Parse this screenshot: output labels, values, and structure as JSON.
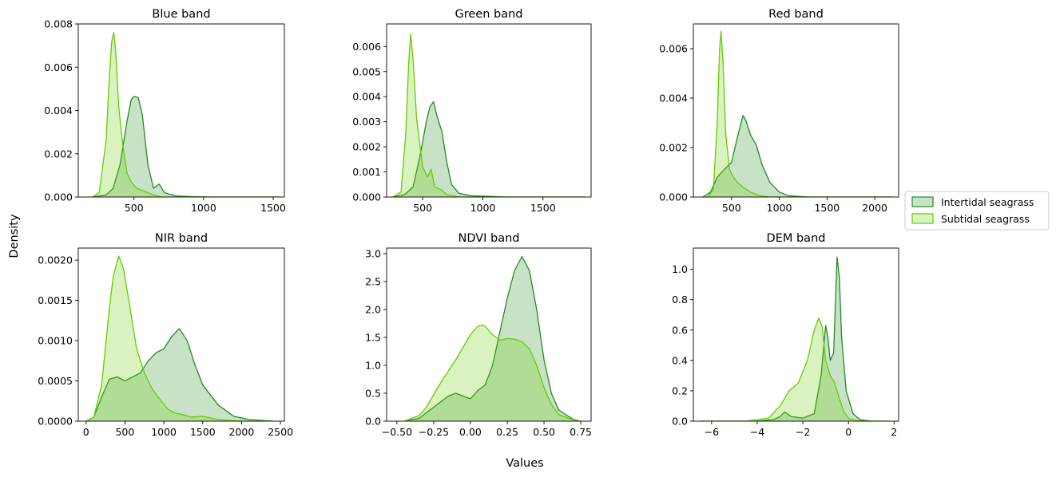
{
  "figure": {
    "xlabel": "Values",
    "ylabel": "Density"
  },
  "colors": {
    "intertidal": "#228b22",
    "subtidal": "#66cc00"
  },
  "legend": {
    "placement": "right-center",
    "entries": [
      {
        "label": "Intertidal seagrass",
        "color": "#228b22"
      },
      {
        "label": "Subtidal seagrass",
        "color": "#66cc00"
      }
    ]
  },
  "chart_data": [
    {
      "type": "area",
      "title": "Blue band",
      "xlim": [
        100,
        1580
      ],
      "ylim": [
        0,
        0.008
      ],
      "xticks": [
        500,
        1000,
        1500
      ],
      "xtick_labels": [
        "500",
        "1000",
        "1500"
      ],
      "yticks": [
        0,
        0.002,
        0.004,
        0.006,
        0.008
      ],
      "ytick_labels": [
        "0.000",
        "0.002",
        "0.004",
        "0.006",
        "0.008"
      ],
      "series": [
        {
          "name": "Intertidal seagrass",
          "x": [
            200,
            300,
            350,
            400,
            450,
            480,
            500,
            530,
            560,
            600,
            640,
            680,
            720,
            800,
            900,
            1100,
            1550
          ],
          "y": [
            0,
            0.0001,
            0.0004,
            0.0015,
            0.0035,
            0.0045,
            0.00465,
            0.0046,
            0.0038,
            0.0015,
            0.0004,
            0.0006,
            0.0002,
            5e-05,
            2e-05,
            0,
            0
          ]
        },
        {
          "name": "Subtidal seagrass",
          "x": [
            200,
            250,
            300,
            320,
            340,
            355,
            370,
            390,
            420,
            450,
            480,
            520,
            560,
            600,
            640,
            700,
            1000,
            1550
          ],
          "y": [
            0,
            0.0002,
            0.0026,
            0.0052,
            0.0072,
            0.0076,
            0.0066,
            0.0042,
            0.0024,
            0.0011,
            0.0007,
            0.0004,
            0.0003,
            0.0002,
            0.0001,
            0,
            0,
            0
          ]
        }
      ]
    },
    {
      "type": "area",
      "title": "Green band",
      "xlim": [
        200,
        1900
      ],
      "ylim": [
        0,
        0.0069
      ],
      "xticks": [
        500,
        1000,
        1500
      ],
      "xtick_labels": [
        "500",
        "1000",
        "1500"
      ],
      "yticks": [
        0,
        0.001,
        0.002,
        0.003,
        0.004,
        0.005,
        0.006
      ],
      "ytick_labels": [
        "0.000",
        "0.001",
        "0.002",
        "0.003",
        "0.004",
        "0.005",
        "0.006"
      ],
      "series": [
        {
          "name": "Intertidal seagrass",
          "x": [
            250,
            350,
            420,
            480,
            530,
            560,
            590,
            620,
            660,
            700,
            740,
            800,
            900,
            1200,
            1850
          ],
          "y": [
            0,
            0.0001,
            0.0004,
            0.0017,
            0.003,
            0.0036,
            0.0038,
            0.0032,
            0.0026,
            0.0014,
            0.0005,
            0.00015,
            5e-05,
            0,
            0
          ]
        },
        {
          "name": "Subtidal seagrass",
          "x": [
            250,
            320,
            360,
            385,
            400,
            420,
            450,
            500,
            540,
            570,
            600,
            650,
            700,
            800,
            1850
          ],
          "y": [
            0,
            0.0002,
            0.0026,
            0.0055,
            0.0065,
            0.0055,
            0.0031,
            0.0012,
            0.0008,
            0.0011,
            0.0004,
            0.0003,
            0.0001,
            0,
            0
          ]
        }
      ]
    },
    {
      "type": "area",
      "title": "Red band",
      "xlim": [
        100,
        2250
      ],
      "ylim": [
        0,
        0.007
      ],
      "xticks": [
        500,
        1000,
        1500,
        2000
      ],
      "xtick_labels": [
        "500",
        "1000",
        "1500",
        "2000"
      ],
      "yticks": [
        0,
        0.002,
        0.004,
        0.006
      ],
      "ytick_labels": [
        "0.000",
        "0.002",
        "0.004",
        "0.006"
      ],
      "series": [
        {
          "name": "Intertidal seagrass",
          "x": [
            200,
            280,
            350,
            420,
            500,
            560,
            620,
            650,
            700,
            760,
            820,
            900,
            1000,
            1100,
            1300,
            2200
          ],
          "y": [
            0,
            0.0002,
            0.0008,
            0.0011,
            0.0014,
            0.0024,
            0.0033,
            0.0031,
            0.0025,
            0.0021,
            0.0013,
            0.0006,
            0.0002,
            5e-05,
            0,
            0
          ]
        },
        {
          "name": "Subtidal seagrass",
          "x": [
            250,
            310,
            350,
            375,
            390,
            410,
            440,
            480,
            520,
            560,
            620,
            700,
            800,
            900,
            2200
          ],
          "y": [
            0,
            0.0003,
            0.003,
            0.006,
            0.0067,
            0.0055,
            0.0025,
            0.0011,
            0.0008,
            0.0006,
            0.0004,
            0.0002,
            5e-05,
            0,
            0
          ]
        }
      ]
    },
    {
      "type": "area",
      "title": "NIR band",
      "xlim": [
        -100,
        2550
      ],
      "ylim": [
        0,
        0.00215
      ],
      "xticks": [
        0,
        500,
        1000,
        1500,
        2000,
        2500
      ],
      "xtick_labels": [
        "0",
        "500",
        "1000",
        "1500",
        "2000",
        "2500"
      ],
      "yticks": [
        0,
        0.0005,
        0.001,
        0.0015,
        0.002
      ],
      "ytick_labels": [
        "0.0000",
        "0.0005",
        "0.0010",
        "0.0015",
        "0.0020"
      ],
      "series": [
        {
          "name": "Intertidal seagrass",
          "x": [
            0,
            100,
            200,
            300,
            400,
            500,
            600,
            700,
            800,
            900,
            1000,
            1100,
            1200,
            1300,
            1400,
            1500,
            1700,
            1900,
            2100,
            2400
          ],
          "y": [
            0,
            5e-05,
            0.0003,
            0.00052,
            0.00055,
            0.0005,
            0.00055,
            0.0006,
            0.00075,
            0.00085,
            0.0009,
            0.00105,
            0.00115,
            0.001,
            0.0007,
            0.00045,
            0.0002,
            6e-05,
            2e-05,
            0
          ]
        },
        {
          "name": "Subtidal seagrass",
          "x": [
            0,
            100,
            200,
            300,
            350,
            420,
            480,
            550,
            650,
            750,
            850,
            950,
            1050,
            1150,
            1250,
            1350,
            1500,
            1700,
            2000,
            2400
          ],
          "y": [
            0,
            5e-05,
            0.00045,
            0.0014,
            0.0018,
            0.00205,
            0.0019,
            0.0015,
            0.0009,
            0.0006,
            0.0004,
            0.00027,
            0.00015,
            0.0001,
            8e-05,
            5e-05,
            6e-05,
            2e-05,
            0,
            0
          ]
        }
      ]
    },
    {
      "type": "area",
      "title": "NDVI band",
      "xlim": [
        -0.57,
        0.82
      ],
      "ylim": [
        0,
        3.1
      ],
      "xticks": [
        -0.5,
        -0.25,
        0,
        0.25,
        0.5,
        0.75
      ],
      "xtick_labels": [
        "−0.50",
        "−0.25",
        "0.00",
        "0.25",
        "0.50",
        "0.75"
      ],
      "yticks": [
        0,
        0.5,
        1,
        1.5,
        2,
        2.5,
        3
      ],
      "ytick_labels": [
        "0.0",
        "0.5",
        "1.0",
        "1.5",
        "2.0",
        "2.5",
        "3.0"
      ],
      "series": [
        {
          "name": "Intertidal seagrass",
          "x": [
            -0.45,
            -0.35,
            -0.25,
            -0.15,
            -0.1,
            -0.05,
            0,
            0.05,
            0.1,
            0.15,
            0.2,
            0.25,
            0.3,
            0.35,
            0.4,
            0.45,
            0.5,
            0.55,
            0.6,
            0.7,
            0.75
          ],
          "y": [
            0,
            0.05,
            0.25,
            0.45,
            0.5,
            0.45,
            0.4,
            0.55,
            0.65,
            1.0,
            1.6,
            2.2,
            2.7,
            2.95,
            2.7,
            2.0,
            1.1,
            0.5,
            0.2,
            0.03,
            0
          ]
        },
        {
          "name": "Subtidal seagrass",
          "x": [
            -0.45,
            -0.35,
            -0.3,
            -0.2,
            -0.1,
            0,
            0.05,
            0.08,
            0.1,
            0.15,
            0.2,
            0.25,
            0.3,
            0.35,
            0.4,
            0.45,
            0.5,
            0.55,
            0.6,
            0.7,
            0.75
          ],
          "y": [
            0,
            0.1,
            0.25,
            0.7,
            1.1,
            1.55,
            1.7,
            1.72,
            1.7,
            1.55,
            1.45,
            1.48,
            1.47,
            1.42,
            1.3,
            1.0,
            0.6,
            0.3,
            0.12,
            0.02,
            0
          ]
        }
      ]
    },
    {
      "type": "area",
      "title": "DEM band",
      "xlim": [
        -6.8,
        2.2
      ],
      "ylim": [
        0,
        1.14
      ],
      "xticks": [
        -6,
        -4,
        -2,
        0,
        2
      ],
      "xtick_labels": [
        "−6",
        "−4",
        "−2",
        "0",
        "2"
      ],
      "yticks": [
        0,
        0.2,
        0.4,
        0.6,
        0.8,
        1.0
      ],
      "ytick_labels": [
        "0.0",
        "0.2",
        "0.4",
        "0.6",
        "0.8",
        "1.0"
      ],
      "series": [
        {
          "name": "Intertidal seagrass",
          "x": [
            -6.5,
            -4,
            -3.3,
            -3,
            -2.8,
            -2.5,
            -2,
            -1.5,
            -1.2,
            -1.0,
            -0.9,
            -0.8,
            -0.65,
            -0.5,
            -0.4,
            -0.3,
            -0.1,
            0.2,
            0.5,
            1.0,
            1.8
          ],
          "y": [
            0,
            0,
            0.01,
            0.03,
            0.06,
            0.03,
            0.02,
            0.05,
            0.3,
            0.63,
            0.55,
            0.4,
            0.45,
            1.08,
            0.95,
            0.55,
            0.2,
            0.05,
            0.01,
            0,
            0
          ]
        },
        {
          "name": "Subtidal seagrass",
          "x": [
            -6.5,
            -4.5,
            -3.5,
            -3,
            -2.6,
            -2.2,
            -1.8,
            -1.5,
            -1.3,
            -1.15,
            -1.0,
            -0.8,
            -0.6,
            -0.4,
            -0.2,
            0,
            0.3,
            0.8,
            1.8
          ],
          "y": [
            0,
            0,
            0.02,
            0.1,
            0.2,
            0.25,
            0.4,
            0.6,
            0.68,
            0.62,
            0.4,
            0.3,
            0.25,
            0.15,
            0.06,
            0.02,
            0.005,
            0,
            0
          ]
        }
      ]
    }
  ]
}
